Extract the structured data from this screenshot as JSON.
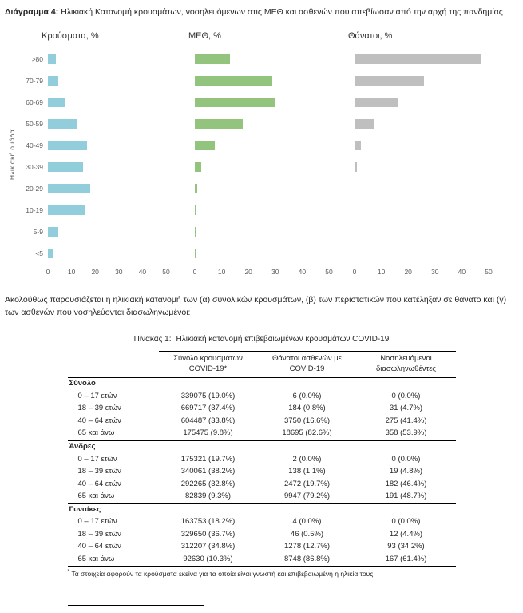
{
  "figure": {
    "label": "Διάγραμμα 4:",
    "title": "Ηλικιακή Κατανομή κρουσμάτων, νοσηλευόμενων στις ΜΕΘ και ασθενών που απεβίωσαν από την αρχή της πανδημίας",
    "y_axis_label": "Ηλικιακή ομάδα"
  },
  "chart_data": {
    "type": "bar",
    "orientation": "horizontal",
    "categories": [
      ">80",
      "70-79",
      "60-69",
      "50-59",
      "40-49",
      "30-39",
      "20-29",
      "10-19",
      "5-9",
      "<5"
    ],
    "series": [
      {
        "name": "Κρούσματα, %",
        "color": "#92CDDC",
        "values": [
          3.5,
          4.5,
          7,
          12.5,
          16.5,
          15,
          18,
          16,
          4.5,
          2
        ]
      },
      {
        "name": "ΜΕΘ, %",
        "color": "#93C47D",
        "values": [
          13,
          29,
          30,
          18,
          7.5,
          2.5,
          1,
          0.3,
          0.2,
          0.3
        ]
      },
      {
        "name": "Θάνατοι, %",
        "color": "#BFBFBF",
        "values": [
          47,
          26,
          16,
          7,
          2.5,
          1,
          0.4,
          0.1,
          0,
          0.1
        ]
      }
    ],
    "xlim": [
      0,
      50
    ],
    "xticks": [
      0,
      10,
      20,
      30,
      40,
      50
    ],
    "ylabel": "Ηλικιακή ομάδα",
    "legend_position": "none",
    "grid": false
  },
  "paragraph": "Ακολούθως παρουσιάζεται η ηλικιακή κατανομή των (α) συνολικών κρουσμάτων, (β) των περιστατικών που κατέληξαν σε θάνατο και (γ) των ασθενών που νοσηλεύονται διασωληνωμένοι:",
  "table": {
    "caption_label": "Πίνακας 1:",
    "caption_text": "Ηλικιακή κατανομή επιβεβαιωμένων κρουσμάτων COVID-19",
    "columns": [
      [
        "Σύνολο κρουσμάτων",
        "COVID-19*"
      ],
      [
        "Θάνατοι ασθενών με",
        "COVID-19"
      ],
      [
        "Νοσηλευόμενοι",
        "διασωληνωθέντες"
      ]
    ],
    "sections": [
      {
        "name": "Σύνολο",
        "rows": [
          {
            "label": "0 – 17 ετών",
            "values": [
              "339075 (19.0%)",
              "6 (0.0%)",
              "0 (0.0%)"
            ]
          },
          {
            "label": "18 – 39 ετών",
            "values": [
              "669717 (37.4%)",
              "184 (0.8%)",
              "31 (4.7%)"
            ]
          },
          {
            "label": "40 – 64 ετών",
            "values": [
              "604487 (33.8%)",
              "3750 (16.6%)",
              "275 (41.4%)"
            ]
          },
          {
            "label": "65 και άνω",
            "values": [
              "175475 (9.8%)",
              "18695 (82.6%)",
              "358 (53.9%)"
            ]
          }
        ]
      },
      {
        "name": "Άνδρες",
        "rows": [
          {
            "label": "0 – 17 ετών",
            "values": [
              "175321 (19.7%)",
              "2 (0.0%)",
              "0 (0.0%)"
            ]
          },
          {
            "label": "18 – 39 ετών",
            "values": [
              "340061 (38.2%)",
              "138 (1.1%)",
              "19 (4.8%)"
            ]
          },
          {
            "label": "40 – 64 ετών",
            "values": [
              "292265 (32.8%)",
              "2472 (19.7%)",
              "182 (46.4%)"
            ]
          },
          {
            "label": "65 και άνω",
            "values": [
              "82839 (9.3%)",
              "9947 (79.2%)",
              "191 (48.7%)"
            ]
          }
        ]
      },
      {
        "name": "Γυναίκες",
        "rows": [
          {
            "label": "0 – 17 ετών",
            "values": [
              "163753 (18.2%)",
              "4 (0.0%)",
              "0 (0.0%)"
            ]
          },
          {
            "label": "18 – 39 ετών",
            "values": [
              "329650 (36.7%)",
              "46 (0.5%)",
              "12 (4.4%)"
            ]
          },
          {
            "label": "40 – 64 ετών",
            "values": [
              "312207 (34.8%)",
              "1278 (12.7%)",
              "93 (34.2%)"
            ]
          },
          {
            "label": "65 και άνω",
            "values": [
              "92630 (10.3%)",
              "8748 (86.8%)",
              "167 (61.4%)"
            ]
          }
        ]
      }
    ],
    "footnote_marker": "*",
    "footnote": "Τα στοιχεία αφορούν τα κρούσματα εκείνα για τα οποία είναι γνωστή και επιβεβαιωμένη η ηλικία τους"
  }
}
